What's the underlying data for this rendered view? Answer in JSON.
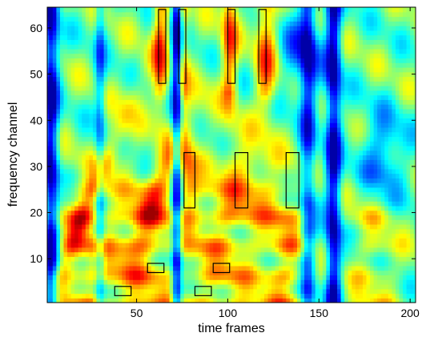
{
  "chart_data": {
    "type": "heatmap",
    "title": "",
    "xlabel": "time frames",
    "ylabel": "frequency channel",
    "xlim": [
      1,
      203
    ],
    "ylim": [
      0.5,
      64.5
    ],
    "x_ticks": [
      50,
      100,
      150,
      200
    ],
    "y_ticks": [
      10,
      20,
      30,
      40,
      50,
      60
    ],
    "colormap": "jet",
    "box_color": "#000000",
    "description_of_values": "spectrogram-like energy; red = high, blue = low",
    "boxes": [
      {
        "x": [
          62,
          66
        ],
        "y": [
          48,
          64
        ]
      },
      {
        "x": [
          73,
          77
        ],
        "y": [
          48,
          64
        ]
      },
      {
        "x": [
          100,
          104
        ],
        "y": [
          48,
          64
        ]
      },
      {
        "x": [
          117,
          121
        ],
        "y": [
          48,
          64
        ]
      },
      {
        "x": [
          76,
          82
        ],
        "y": [
          21,
          33
        ]
      },
      {
        "x": [
          104,
          111
        ],
        "y": [
          21,
          33
        ]
      },
      {
        "x": [
          132,
          139
        ],
        "y": [
          21,
          33
        ]
      },
      {
        "x": [
          56,
          65
        ],
        "y": [
          7,
          9
        ]
      },
      {
        "x": [
          92,
          101
        ],
        "y": [
          7,
          9
        ]
      },
      {
        "x": [
          38,
          47
        ],
        "y": [
          2,
          4
        ]
      },
      {
        "x": [
          82,
          91
        ],
        "y": [
          2,
          4
        ]
      }
    ]
  }
}
